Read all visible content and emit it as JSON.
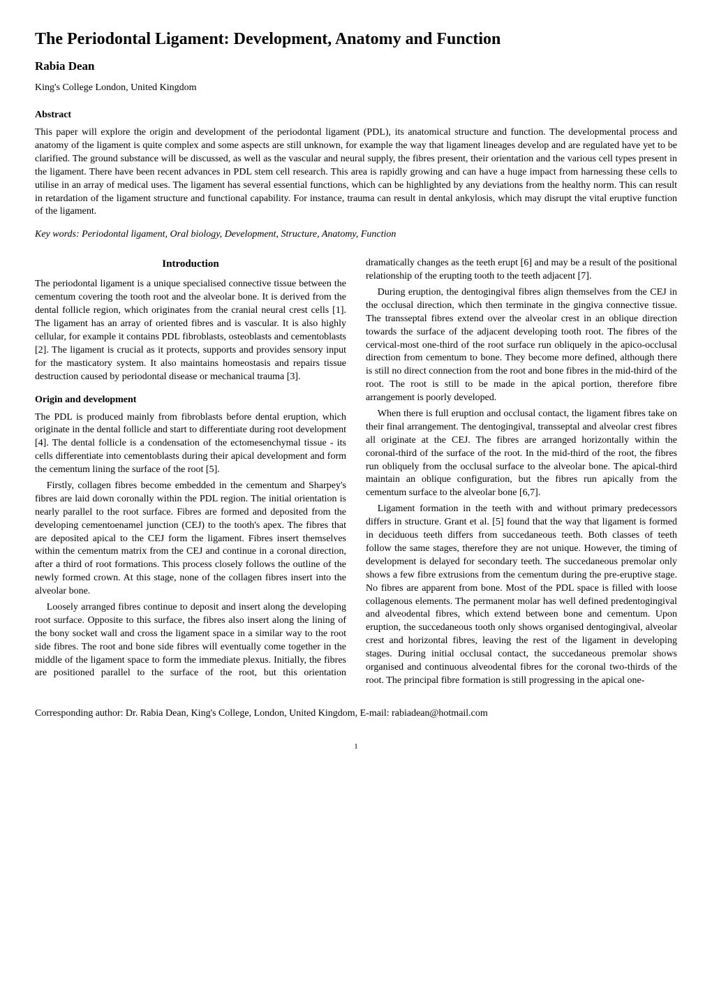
{
  "title": "The Periodontal Ligament: Development, Anatomy and Function",
  "author": "Rabia Dean",
  "affiliation": "King's College London, United Kingdom",
  "abstract_heading": "Abstract",
  "abstract_text": "This paper will explore the origin and development of the periodontal ligament (PDL), its anatomical structure and function. The developmental process and anatomy of the ligament is quite complex and some aspects are still unknown, for example the way that ligament lineages develop and are regulated have yet to be clarified. The ground substance will be discussed, as well as the vascular and neural supply, the fibres present, their orientation and the various cell types present in the ligament. There have been recent advances in PDL stem cell research. This area is rapidly growing and can have a huge impact from harnessing these cells to utilise in an array of medical uses. The ligament has several essential functions, which can be highlighted by any deviations from the healthy norm. This can result in retardation of the ligament structure and functional capability. For instance, trauma can result in dental ankylosis, which may disrupt the vital eruptive function of the ligament.",
  "keywords": "Key words: Periodontal ligament, Oral biology, Development, Structure, Anatomy, Function",
  "intro_heading": "Introduction",
  "paragraphs": {
    "p1": "The periodontal ligament is a unique specialised connective tissue between the cementum covering the tooth root and the alveolar bone. It is derived from the dental follicle region, which originates from the cranial neural crest cells [1]. The ligament has an array of oriented fibres and is vascular. It is also highly cellular, for example it contains PDL fibroblasts, osteoblasts and cementoblasts [2]. The ligament is crucial as it protects, supports and provides sensory input for the masticatory system. It also maintains homeostasis and repairs tissue destruction caused by periodontal disease or mechanical trauma [3].",
    "subheading": "Origin and development",
    "p2": "The PDL is produced mainly from fibroblasts before dental eruption, which originate in the dental follicle and start to differentiate during root development [4]. The dental follicle is a condensation of the ectomesenchymal tissue - its cells differentiate into cementoblasts during their apical development and form the cementum lining the surface of the root [5].",
    "p3": "Firstly, collagen fibres become embedded in the cementum and Sharpey's fibres are laid down coronally within the PDL region. The initial orientation is nearly parallel to the root surface. Fibres are formed and deposited from the developing cementoenamel junction (CEJ) to the tooth's apex. The fibres that are deposited apical to the CEJ form the ligament. Fibres insert themselves within the cementum matrix from the CEJ and continue in a coronal direction, after a third of root formations. This process closely follows the outline of the newly formed crown. At this stage, none of the collagen fibres insert into the alveolar bone.",
    "p4": "Loosely arranged fibres continue to deposit and insert along the developing root surface. Opposite to this surface, the fibres also insert along the lining of the bony socket wall and cross the ligament space in a similar way to the root side fibres. The root and bone side fibres will eventually come together in the middle of the ligament space to form the immediate plexus. Initially, the fibres are positioned parallel to the surface of the root, but this orientation dramatically changes as the teeth erupt [6] and may be a result of the positional relationship of the erupting tooth to the teeth adjacent [7].",
    "p5": "During eruption, the dentogingival fibres align themselves from the CEJ in the occlusal direction, which then terminate in the gingiva connective tissue. The transseptal fibres extend over the alveolar crest in an oblique direction towards the surface of the adjacent developing tooth root. The fibres of the cervical-most one-third of the root surface run obliquely in the apico-occlusal direction from cementum to bone. They become more defined, although there is still no direct connection from the root and bone fibres in the mid-third of the root. The root is still to be made in the apical portion, therefore fibre arrangement is poorly developed.",
    "p6": "When there is full eruption and occlusal contact, the ligament fibres take on their final arrangement. The dentogingival, transseptal and alveolar crest fibres all originate at the CEJ. The fibres are arranged horizontally within the coronal-third of the surface of the root. In the mid-third of the root, the fibres run obliquely from the occlusal surface to the alveolar bone. The apical-third maintain an oblique configuration, but the fibres run apically from the cementum surface to the alveolar bone [6,7].",
    "p7": "Ligament formation in the teeth with and without primary predecessors differs in structure. Grant et al. [5] found that the way that ligament is formed in deciduous teeth differs from succedaneous teeth. Both classes of teeth follow the same stages, therefore they are not unique. However, the timing of development is delayed for secondary teeth. The succedaneous premolar only shows a few fibre extrusions from the cementum during the pre-eruptive stage. No fibres are apparent from bone. Most of the PDL space is filled with loose collagenous elements. The permanent molar has well defined predentogingival and alveodental fibres, which extend between bone and cementum. Upon eruption, the succedaneous tooth only shows organised dentogingival, alveolar crest and horizontal fibres, leaving the rest of the ligament in developing stages. During initial occlusal contact, the succedaneous premolar shows organised and continuous alveodental fibres for the coronal two-thirds of the root. The principal fibre formation is still progressing in the apical one-"
  },
  "corresponding": "Corresponding author: Dr. Rabia Dean, King's College, London, United Kingdom, E-mail: rabiadean@hotmail.com",
  "page_number": "1"
}
